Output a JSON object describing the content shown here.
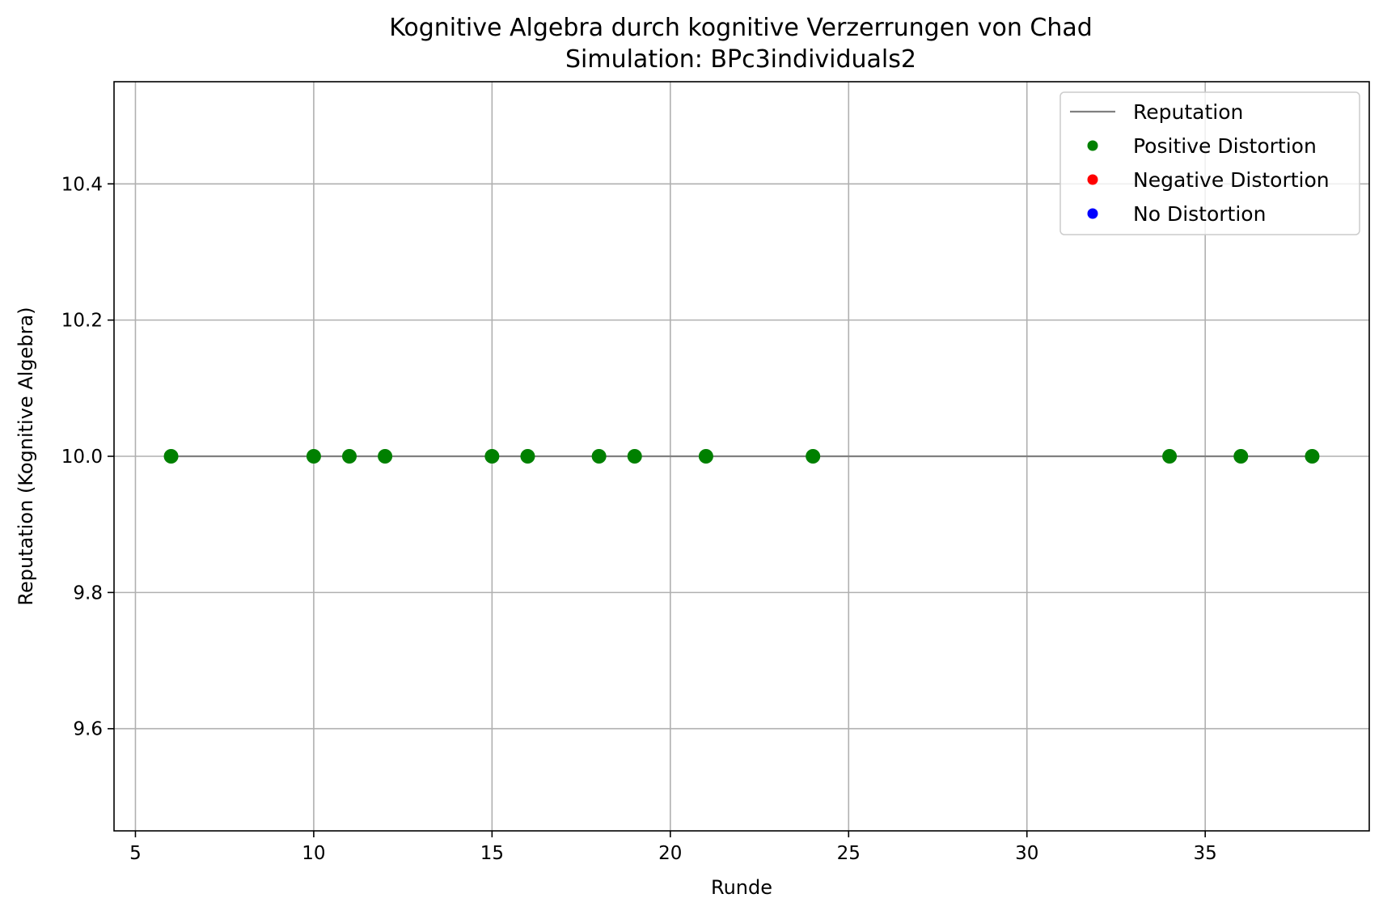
{
  "chart_data": {
    "type": "scatter",
    "title": "Kognitive Algebra durch kognitive Verzerrungen von Chad",
    "subtitle": "Simulation: BPc3individuals2",
    "xlabel": "Runde",
    "ylabel": "Reputation (Kognitive Algebra)",
    "xlim": [
      4.4,
      39.6
    ],
    "ylim": [
      9.45,
      10.55
    ],
    "xticks": [
      5,
      10,
      15,
      20,
      25,
      30,
      35
    ],
    "yticks": [
      9.6,
      9.8,
      10.0,
      10.2,
      10.4
    ],
    "xtick_labels": [
      "5",
      "10",
      "15",
      "20",
      "25",
      "30",
      "35"
    ],
    "ytick_labels": [
      "9.6",
      "9.8",
      "10.0",
      "10.2",
      "10.4"
    ],
    "grid": true,
    "legend_position": "top-right",
    "legend": [
      {
        "label": "Reputation",
        "kind": "line",
        "color": "#808080"
      },
      {
        "label": "Positive Distortion",
        "kind": "marker",
        "color": "#008000"
      },
      {
        "label": "Negative Distortion",
        "kind": "marker",
        "color": "#ff0000"
      },
      {
        "label": "No Distortion",
        "kind": "marker",
        "color": "#0000ff"
      }
    ],
    "series": [
      {
        "name": "Reputation",
        "kind": "line",
        "color": "#808080",
        "x": [
          6,
          38
        ],
        "y": [
          10.0,
          10.0
        ]
      },
      {
        "name": "Positive Distortion",
        "kind": "marker",
        "color": "#008000",
        "x": [
          6,
          10,
          11,
          12,
          15,
          16,
          18,
          19,
          21,
          24,
          34,
          36,
          38
        ],
        "y": [
          10.0,
          10.0,
          10.0,
          10.0,
          10.0,
          10.0,
          10.0,
          10.0,
          10.0,
          10.0,
          10.0,
          10.0,
          10.0
        ]
      },
      {
        "name": "Negative Distortion",
        "kind": "marker",
        "color": "#ff0000",
        "x": [],
        "y": []
      },
      {
        "name": "No Distortion",
        "kind": "marker",
        "color": "#0000ff",
        "x": [],
        "y": []
      }
    ]
  }
}
